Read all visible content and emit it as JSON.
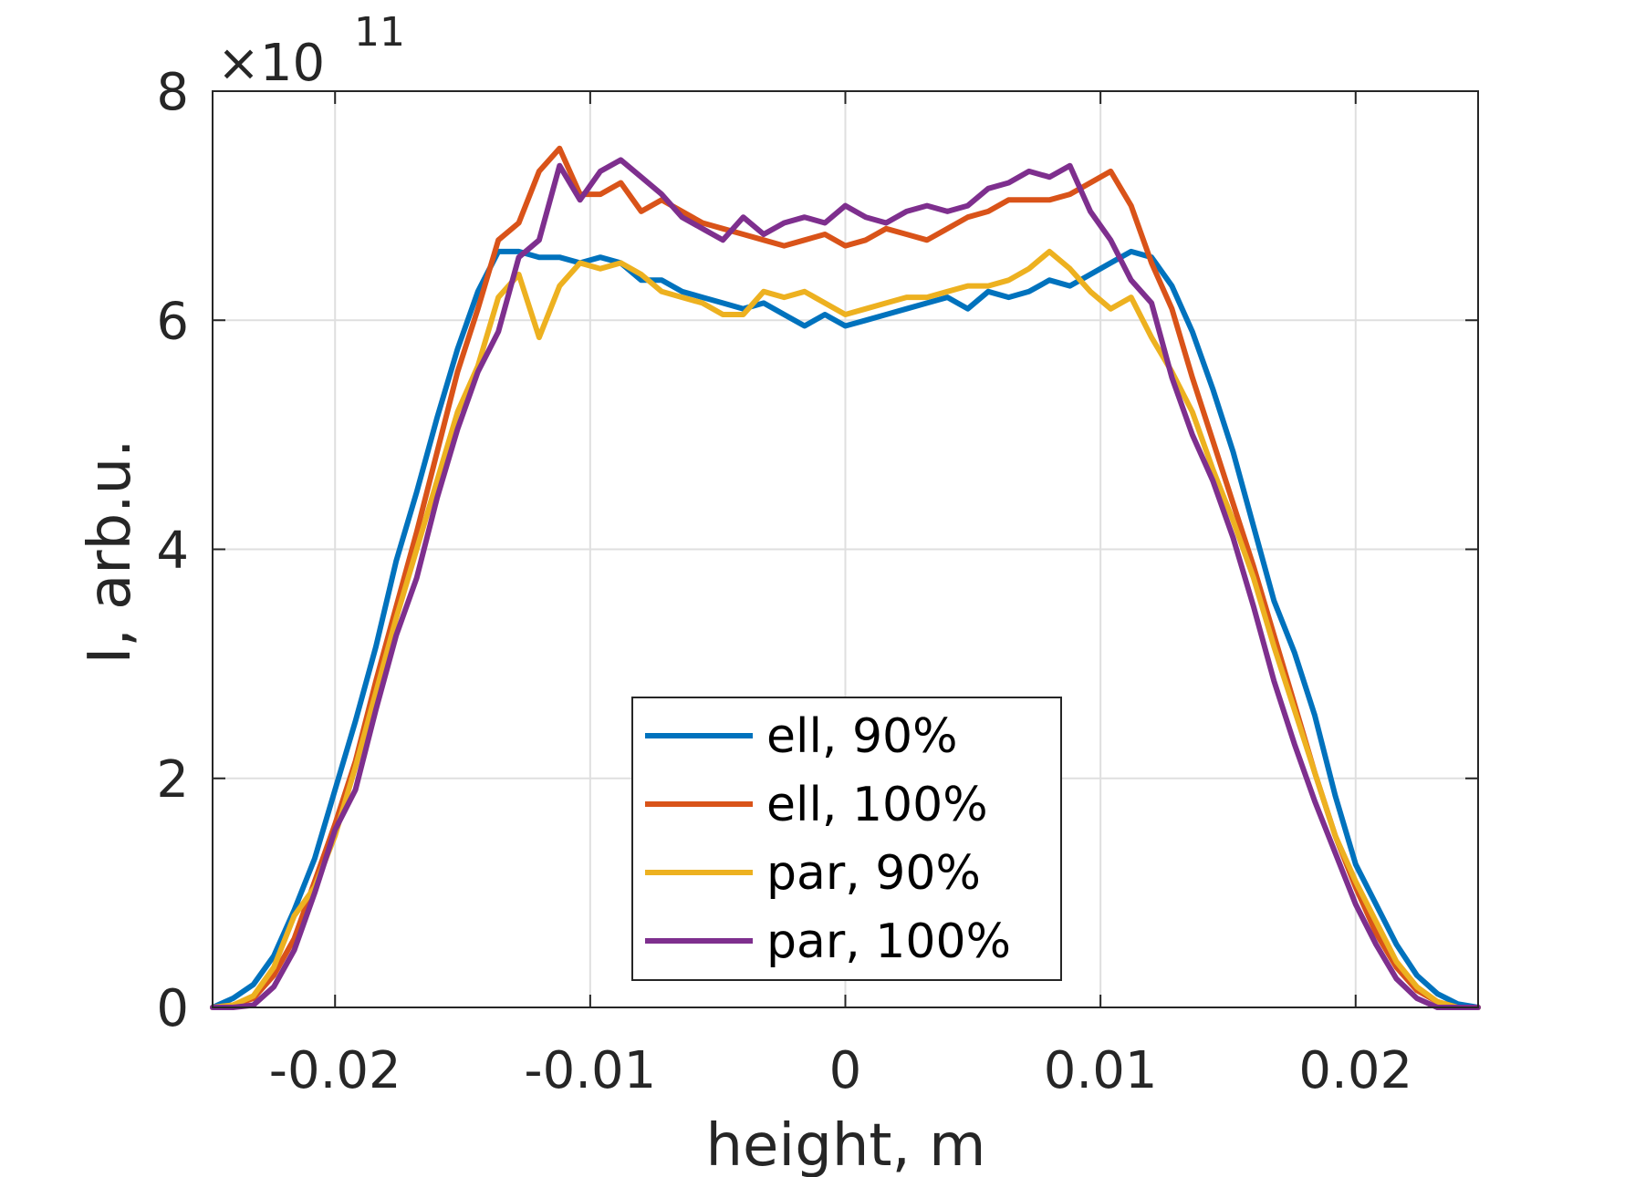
{
  "chart_data": {
    "type": "line",
    "xlabel": "height, m",
    "ylabel": "I, arb.u.",
    "xlim": [
      -0.0248,
      0.0248
    ],
    "ylim": [
      0,
      8
    ],
    "y_multiplier": {
      "prefix": "×10",
      "exponent": "11"
    },
    "xticks": [
      -0.02,
      -0.01,
      0,
      0.01,
      0.02
    ],
    "xtick_labels": [
      "-0.02",
      "-0.01",
      "0",
      "0.01",
      "0.02"
    ],
    "yticks": [
      0,
      2,
      4,
      6,
      8
    ],
    "ytick_labels": [
      "0",
      "2",
      "4",
      "6",
      "8"
    ],
    "grid": true,
    "legend_position": "bottom-center",
    "series": [
      {
        "name": "ell, 90%",
        "color": "#0072BD",
        "x": [
          -0.0248,
          -0.024,
          -0.0232,
          -0.0224,
          -0.0216,
          -0.0208,
          -0.02,
          -0.0192,
          -0.0184,
          -0.0176,
          -0.0168,
          -0.016,
          -0.0152,
          -0.0144,
          -0.0136,
          -0.0128,
          -0.012,
          -0.0112,
          -0.0104,
          -0.0096,
          -0.0088,
          -0.008,
          -0.0072,
          -0.0064,
          -0.0056,
          -0.0048,
          -0.004,
          -0.0032,
          -0.0024,
          -0.0016,
          -0.0008,
          0,
          0.0008,
          0.0016,
          0.0024,
          0.0032,
          0.004,
          0.0048,
          0.0056,
          0.0064,
          0.0072,
          0.008,
          0.0088,
          0.0096,
          0.0104,
          0.0112,
          0.012,
          0.0128,
          0.0136,
          0.0144,
          0.0152,
          0.016,
          0.0168,
          0.0176,
          0.0184,
          0.0192,
          0.02,
          0.0208,
          0.0216,
          0.0224,
          0.0232,
          0.024,
          0.0248
        ],
        "values": [
          0.0,
          0.08,
          0.2,
          0.45,
          0.85,
          1.3,
          1.9,
          2.5,
          3.15,
          3.9,
          4.5,
          5.15,
          5.75,
          6.25,
          6.6,
          6.6,
          6.55,
          6.55,
          6.5,
          6.55,
          6.5,
          6.35,
          6.35,
          6.25,
          6.2,
          6.15,
          6.1,
          6.15,
          6.05,
          5.95,
          6.05,
          5.95,
          6.0,
          6.05,
          6.1,
          6.15,
          6.2,
          6.1,
          6.25,
          6.2,
          6.25,
          6.35,
          6.3,
          6.4,
          6.5,
          6.6,
          6.55,
          6.3,
          5.9,
          5.4,
          4.85,
          4.2,
          3.55,
          3.1,
          2.55,
          1.85,
          1.25,
          0.9,
          0.55,
          0.28,
          0.12,
          0.03,
          0.0
        ]
      },
      {
        "name": "ell, 100%",
        "color": "#D95319",
        "x": [
          -0.0248,
          -0.024,
          -0.0232,
          -0.0224,
          -0.0216,
          -0.0208,
          -0.02,
          -0.0192,
          -0.0184,
          -0.0176,
          -0.0168,
          -0.016,
          -0.0152,
          -0.0144,
          -0.0136,
          -0.0128,
          -0.012,
          -0.0112,
          -0.0104,
          -0.0096,
          -0.0088,
          -0.008,
          -0.0072,
          -0.0064,
          -0.0056,
          -0.0048,
          -0.004,
          -0.0032,
          -0.0024,
          -0.0016,
          -0.0008,
          0,
          0.0008,
          0.0016,
          0.0024,
          0.0032,
          0.004,
          0.0048,
          0.0056,
          0.0064,
          0.0072,
          0.008,
          0.0088,
          0.0096,
          0.0104,
          0.0112,
          0.012,
          0.0128,
          0.0136,
          0.0144,
          0.0152,
          0.016,
          0.0168,
          0.0176,
          0.0184,
          0.0192,
          0.02,
          0.0208,
          0.0216,
          0.0224,
          0.0232,
          0.024,
          0.0248
        ],
        "values": [
          0.0,
          0.02,
          0.08,
          0.28,
          0.6,
          1.1,
          1.6,
          2.15,
          2.85,
          3.5,
          4.15,
          4.85,
          5.55,
          6.1,
          6.7,
          6.85,
          7.3,
          7.5,
          7.1,
          7.1,
          7.2,
          6.95,
          7.05,
          6.95,
          6.85,
          6.8,
          6.75,
          6.7,
          6.65,
          6.7,
          6.75,
          6.65,
          6.7,
          6.8,
          6.75,
          6.7,
          6.8,
          6.9,
          6.95,
          7.05,
          7.05,
          7.05,
          7.1,
          7.2,
          7.3,
          7.0,
          6.5,
          6.1,
          5.5,
          4.95,
          4.4,
          3.85,
          3.25,
          2.65,
          2.05,
          1.5,
          1.05,
          0.65,
          0.35,
          0.15,
          0.05,
          0.0,
          0.0
        ]
      },
      {
        "name": "par, 90%",
        "color": "#EDB120",
        "x": [
          -0.0248,
          -0.024,
          -0.0232,
          -0.0224,
          -0.0216,
          -0.0208,
          -0.02,
          -0.0192,
          -0.0184,
          -0.0176,
          -0.0168,
          -0.016,
          -0.0152,
          -0.0144,
          -0.0136,
          -0.0128,
          -0.012,
          -0.0112,
          -0.0104,
          -0.0096,
          -0.0088,
          -0.008,
          -0.0072,
          -0.0064,
          -0.0056,
          -0.0048,
          -0.004,
          -0.0032,
          -0.0024,
          -0.0016,
          -0.0008,
          0,
          0.0008,
          0.0016,
          0.0024,
          0.0032,
          0.004,
          0.0048,
          0.0056,
          0.0064,
          0.0072,
          0.008,
          0.0088,
          0.0096,
          0.0104,
          0.0112,
          0.012,
          0.0128,
          0.0136,
          0.0144,
          0.0152,
          0.016,
          0.0168,
          0.0176,
          0.0184,
          0.0192,
          0.02,
          0.0208,
          0.0216,
          0.0224,
          0.0232,
          0.024,
          0.0248
        ],
        "values": [
          0.0,
          0.02,
          0.1,
          0.35,
          0.8,
          1.05,
          1.5,
          2.1,
          2.75,
          3.4,
          4.0,
          4.6,
          5.2,
          5.6,
          6.2,
          6.4,
          5.85,
          6.3,
          6.5,
          6.45,
          6.5,
          6.4,
          6.25,
          6.2,
          6.15,
          6.05,
          6.05,
          6.25,
          6.2,
          6.25,
          6.15,
          6.05,
          6.1,
          6.15,
          6.2,
          6.2,
          6.25,
          6.3,
          6.3,
          6.35,
          6.45,
          6.6,
          6.45,
          6.25,
          6.1,
          6.2,
          5.85,
          5.55,
          5.2,
          4.7,
          4.25,
          3.75,
          3.15,
          2.6,
          2.05,
          1.5,
          1.1,
          0.75,
          0.4,
          0.18,
          0.05,
          0.0,
          0.0
        ]
      },
      {
        "name": "par, 100%",
        "color": "#7E2F8E",
        "x": [
          -0.0248,
          -0.024,
          -0.0232,
          -0.0224,
          -0.0216,
          -0.0208,
          -0.02,
          -0.0192,
          -0.0184,
          -0.0176,
          -0.0168,
          -0.016,
          -0.0152,
          -0.0144,
          -0.0136,
          -0.0128,
          -0.012,
          -0.0112,
          -0.0104,
          -0.0096,
          -0.0088,
          -0.008,
          -0.0072,
          -0.0064,
          -0.0056,
          -0.0048,
          -0.004,
          -0.0032,
          -0.0024,
          -0.0016,
          -0.0008,
          0,
          0.0008,
          0.0016,
          0.0024,
          0.0032,
          0.004,
          0.0048,
          0.0056,
          0.0064,
          0.0072,
          0.008,
          0.0088,
          0.0096,
          0.0104,
          0.0112,
          0.012,
          0.0128,
          0.0136,
          0.0144,
          0.0152,
          0.016,
          0.0168,
          0.0176,
          0.0184,
          0.0192,
          0.02,
          0.0208,
          0.0216,
          0.0224,
          0.0232,
          0.024,
          0.0248
        ],
        "values": [
          0.0,
          0.0,
          0.02,
          0.18,
          0.5,
          1.0,
          1.55,
          1.9,
          2.6,
          3.25,
          3.75,
          4.45,
          5.05,
          5.55,
          5.9,
          6.55,
          6.7,
          7.35,
          7.05,
          7.3,
          7.4,
          7.25,
          7.1,
          6.9,
          6.8,
          6.7,
          6.9,
          6.75,
          6.85,
          6.9,
          6.85,
          7.0,
          6.9,
          6.85,
          6.95,
          7.0,
          6.95,
          7.0,
          7.15,
          7.2,
          7.3,
          7.25,
          7.35,
          6.95,
          6.7,
          6.35,
          6.15,
          5.5,
          5.0,
          4.6,
          4.1,
          3.5,
          2.85,
          2.3,
          1.8,
          1.35,
          0.9,
          0.55,
          0.25,
          0.08,
          0.0,
          0.0,
          0.0
        ]
      }
    ]
  }
}
